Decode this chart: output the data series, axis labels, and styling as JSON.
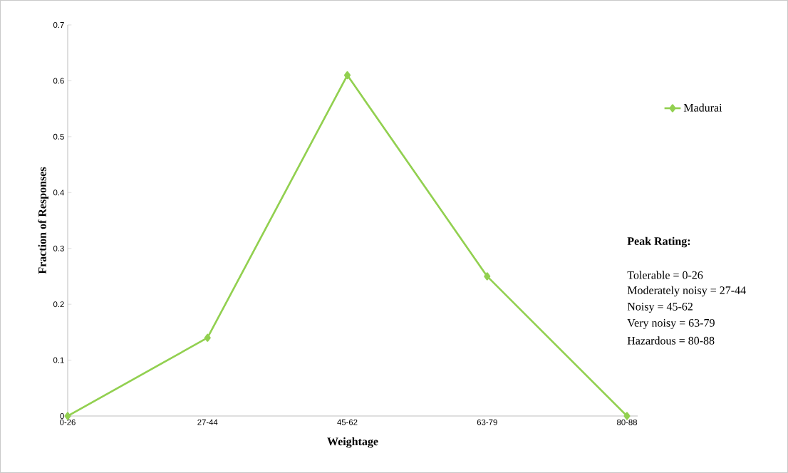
{
  "chart_data": {
    "type": "line",
    "xlabel": "Weightage",
    "ylabel": "Fraction of Responses",
    "categories": [
      "0-26",
      "27-44",
      "45-62",
      "63-79",
      "80-88"
    ],
    "series": [
      {
        "name": "Madurai",
        "color": "#92d050",
        "values": [
          0,
          0.14,
          0.61,
          0.25,
          0
        ]
      }
    ],
    "ylim": [
      0,
      0.7
    ],
    "yticks": [
      0,
      0.1,
      0.2,
      0.3,
      0.4,
      0.5,
      0.6,
      0.7
    ],
    "marker": "diamond",
    "line_style": "solid",
    "legend": "top right",
    "grid": false,
    "annotations": [
      "Peak Rating:",
      "Tolerable = 0-26",
      "Moderately noisy = 27-44",
      "Noisy = 45-62",
      "Very noisy = 63-79",
      "Hazardous = 80-88"
    ]
  }
}
